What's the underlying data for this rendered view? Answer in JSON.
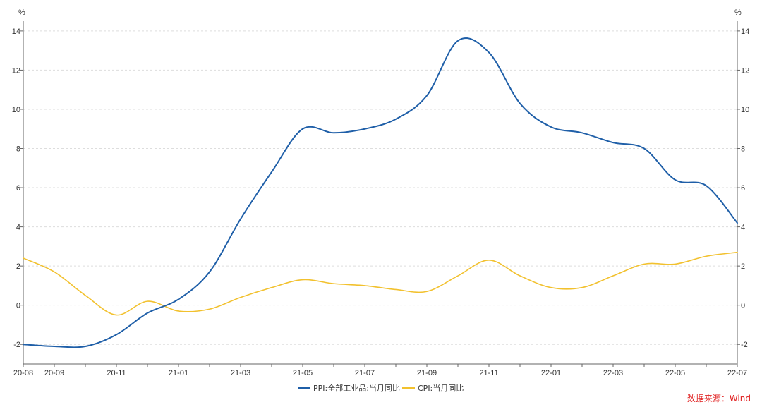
{
  "chart_data": {
    "type": "line",
    "title": "",
    "xlabel": "",
    "ylabel": "%",
    "ylabel_right": "%",
    "ylim": [
      -3,
      14.5
    ],
    "y_ticks": [
      -2,
      0,
      2,
      4,
      6,
      8,
      10,
      12,
      14
    ],
    "x_tick_labels": [
      "20-08",
      "20-09",
      "20-11",
      "21-01",
      "21-03",
      "21-05",
      "21-07",
      "21-09",
      "21-11",
      "22-01",
      "22-03",
      "22-05",
      "22-07"
    ],
    "x": [
      "20-08",
      "20-09",
      "20-10",
      "20-11",
      "20-12",
      "21-01",
      "21-02",
      "21-03",
      "21-04",
      "21-05",
      "21-06",
      "21-07",
      "21-08",
      "21-09",
      "21-10",
      "21-11",
      "21-12",
      "22-01",
      "22-02",
      "22-03",
      "22-04",
      "22-05",
      "22-06",
      "22-07"
    ],
    "grid": true,
    "legend_position": "bottom-center",
    "series": [
      {
        "name": "PPI:全部工业品:当月同比",
        "color": "#1f5fa8",
        "values": [
          -2.0,
          -2.1,
          -2.1,
          -1.5,
          -0.4,
          0.3,
          1.7,
          4.4,
          6.8,
          9.0,
          8.8,
          9.0,
          9.5,
          10.7,
          13.5,
          12.9,
          10.3,
          9.1,
          8.8,
          8.3,
          8.0,
          6.4,
          6.1,
          4.2
        ]
      },
      {
        "name": "CPI:当月同比",
        "color": "#f2c12e",
        "values": [
          2.4,
          1.7,
          0.5,
          -0.5,
          0.2,
          -0.3,
          -0.2,
          0.4,
          0.9,
          1.3,
          1.1,
          1.0,
          0.8,
          0.7,
          1.5,
          2.3,
          1.5,
          0.9,
          0.9,
          1.5,
          2.1,
          2.1,
          2.5,
          2.7
        ]
      }
    ]
  },
  "source": {
    "text": "数据来源：Wind",
    "color": "#e02020"
  },
  "colors": {
    "axis": "#666666",
    "grid": "#dddddd"
  }
}
